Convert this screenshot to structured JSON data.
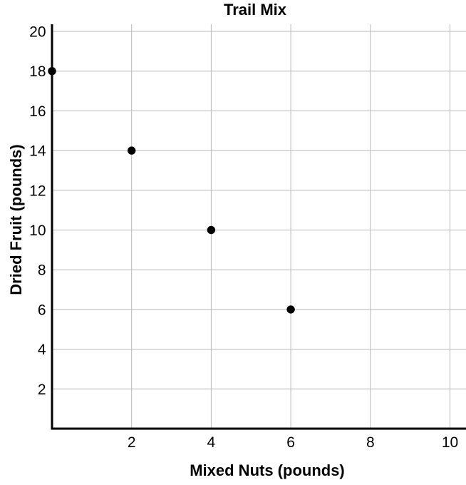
{
  "chart_data": {
    "type": "scatter",
    "title": "Trail Mix",
    "xlabel": "Mixed Nuts (pounds)",
    "ylabel": "Dried Fruit (pounds)",
    "points": [
      {
        "x": 0,
        "y": 18
      },
      {
        "x": 2,
        "y": 14
      },
      {
        "x": 4,
        "y": 10
      },
      {
        "x": 6,
        "y": 6
      }
    ],
    "xticks": [
      2,
      4,
      6,
      8,
      10
    ],
    "yticks": [
      2,
      4,
      6,
      8,
      10,
      12,
      14,
      16,
      18,
      20
    ],
    "xlim": [
      0,
      10.4
    ],
    "ylim": [
      0,
      20.4
    ],
    "grid": true,
    "legend": "none",
    "colors": {
      "point": "#000000",
      "axis": "#000000",
      "grid": "#b8b8b8",
      "text": "#000000",
      "background": "#ffffff"
    }
  }
}
